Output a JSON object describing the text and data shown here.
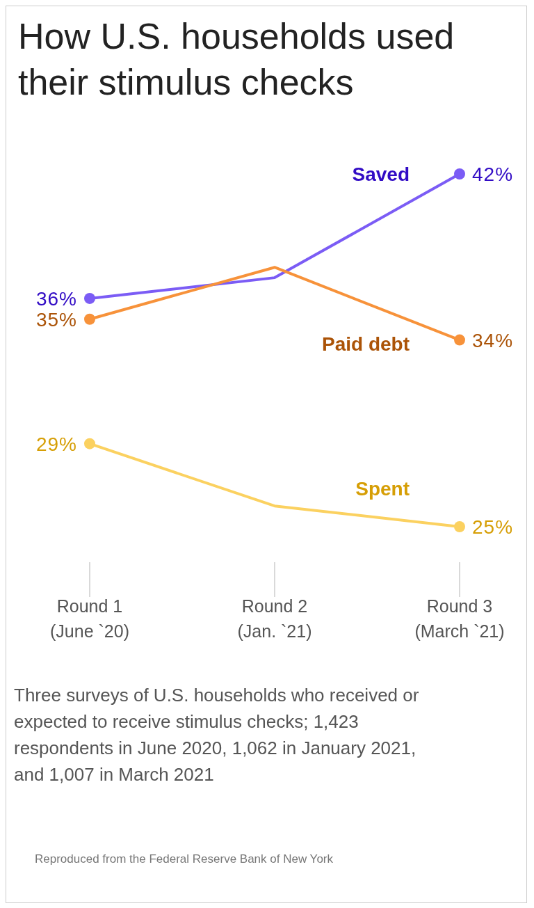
{
  "chart_data": {
    "type": "line",
    "title": "How U.S. households used their stimulus checks",
    "categories": [
      "Round 1\n(June `20)",
      "Round 2\n(Jan. `21)",
      "Round 3\n(March `21)"
    ],
    "marker": "circle",
    "line_style": "solid",
    "tick_labels": "x",
    "series": [
      {
        "name": "Saved",
        "color": "#7b5cf5",
        "values": [
          36,
          37,
          42
        ],
        "value_labels": [
          "36%",
          null,
          "42%"
        ]
      },
      {
        "name": "Paid debt",
        "color": "#f7923a",
        "values": [
          35,
          37.5,
          34
        ],
        "value_labels": [
          "35%",
          null,
          "34%"
        ]
      },
      {
        "name": "Spent",
        "color": "#fbd160",
        "values": [
          29,
          26,
          25
        ],
        "value_labels": [
          "29%",
          null,
          "25%"
        ]
      }
    ],
    "annotations": [
      "Three surveys of U.S. households who received or expected to receive stimulus checks; 1,423 respondents in June 2020, 1,062 in January 2021, and 1,007 in March 2021",
      "Reproduced from the Federal Reserve Bank of New York"
    ]
  }
}
